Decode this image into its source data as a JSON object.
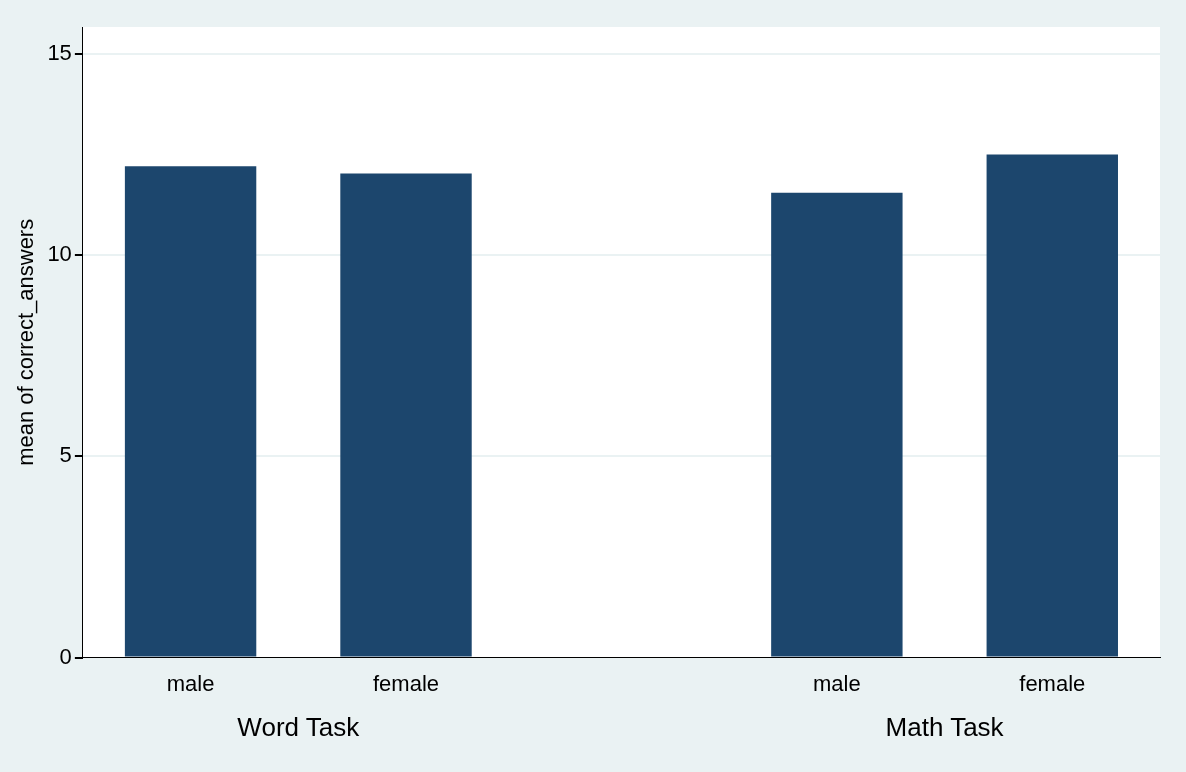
{
  "chart_data": {
    "type": "bar",
    "ylabel": "mean of correct_answers",
    "categories": [
      "male",
      "female",
      null,
      "male",
      "female"
    ],
    "values": [
      12.21,
      12.03,
      null,
      11.55,
      12.5
    ],
    "color": "#1c466d",
    "ylim": [
      0,
      15.67
    ],
    "yticks": [
      0,
      5,
      10,
      15
    ],
    "grid": "y",
    "annotations": [
      "Word Task",
      "Math Task"
    ]
  }
}
